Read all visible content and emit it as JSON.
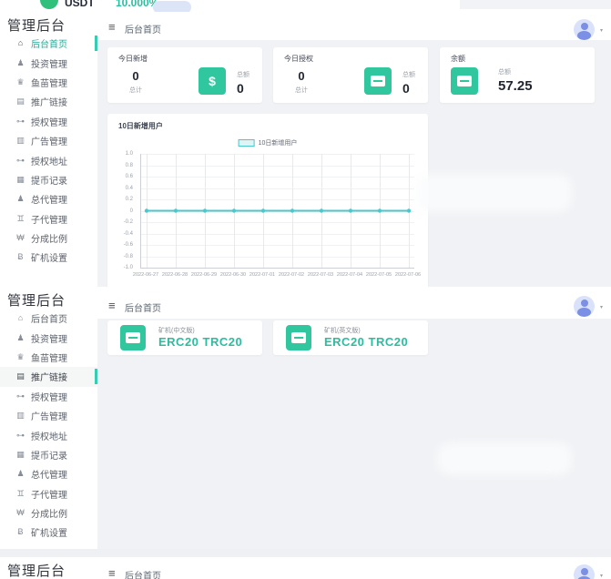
{
  "colors": {
    "accent_teal": "#30c69e",
    "chart_line": "#4bc8cc",
    "link_teal": "#2bbd9e",
    "avatar_blue": "#7b8fe4",
    "avatar_bg": "#d9e2fa",
    "content_bg": "#f0f2f5",
    "active_bar": "#38cdb2",
    "coin_green": "#2fc17c"
  },
  "top_strip": {
    "coin": "USDT",
    "rate": "10.000%"
  },
  "app": {
    "title": "管理后台"
  },
  "topbar": {
    "breadcrumb": "后台首页",
    "hamburger_glyph": "≡",
    "caret_glyph": "▾"
  },
  "sidebar": {
    "items": [
      {
        "key": "home",
        "label": "后台首页",
        "icon": "home-icon"
      },
      {
        "key": "investment",
        "label": "投资管理",
        "icon": "user-icon"
      },
      {
        "key": "leads",
        "label": "鱼苗管理",
        "icon": "crown-icon"
      },
      {
        "key": "promo-links",
        "label": "推广链接",
        "icon": "document-icon"
      },
      {
        "key": "authorization",
        "label": "授权管理",
        "icon": "key-icon"
      },
      {
        "key": "ads",
        "label": "广告管理",
        "icon": "ad-icon"
      },
      {
        "key": "auth-address",
        "label": "授权地址",
        "icon": "key-icon"
      },
      {
        "key": "withdrawals",
        "label": "提币记录",
        "icon": "ledger-icon"
      },
      {
        "key": "general-agents",
        "label": "总代管理",
        "icon": "user-icon"
      },
      {
        "key": "sub-agents",
        "label": "子代管理",
        "icon": "users-icon"
      },
      {
        "key": "commission",
        "label": "分成比例",
        "icon": "won-icon"
      },
      {
        "key": "miners",
        "label": "矿机设置",
        "icon": "bitcoin-icon"
      }
    ]
  },
  "panel1": {
    "active_index": 0
  },
  "panel2": {
    "active_index": 3
  },
  "stats": [
    {
      "title": "今日新增",
      "left_value": "0",
      "left_label": "总计",
      "icon": "dollar-icon",
      "right_label": "总额",
      "right_value": "0"
    },
    {
      "title": "今日授权",
      "left_value": "0",
      "left_label": "总计",
      "icon": "card-icon",
      "right_label": "总额",
      "right_value": "0"
    },
    {
      "title": "余额",
      "icon": "wallet-icon",
      "right_label": "总额",
      "right_value": "57.25"
    }
  ],
  "chart_data": {
    "type": "line",
    "title": "10日新增用户",
    "legend": [
      "10日新增用户"
    ],
    "legend_position": "top-center",
    "x": [
      "2022-06-27",
      "2022-06-28",
      "2022-06-29",
      "2022-06-30",
      "2022-07-01",
      "2022-07-02",
      "2022-07-03",
      "2022-07-04",
      "2022-07-05",
      "2022-07-06"
    ],
    "series": [
      {
        "name": "10日新增用户",
        "values": [
          0,
          0,
          0,
          0,
          0,
          0,
          0,
          0,
          0,
          0
        ]
      }
    ],
    "ylim": [
      -1,
      1
    ],
    "ytick_step": 0.2,
    "grid": true,
    "line_color": "#4bc8cc"
  },
  "miner_cards": [
    {
      "label": "矿机(中文版)",
      "value": "ERC20 TRC20",
      "icon": "miner-icon"
    },
    {
      "label": "矿机(英文版)",
      "value": "ERC20 TRC20",
      "icon": "miner-icon"
    }
  ]
}
